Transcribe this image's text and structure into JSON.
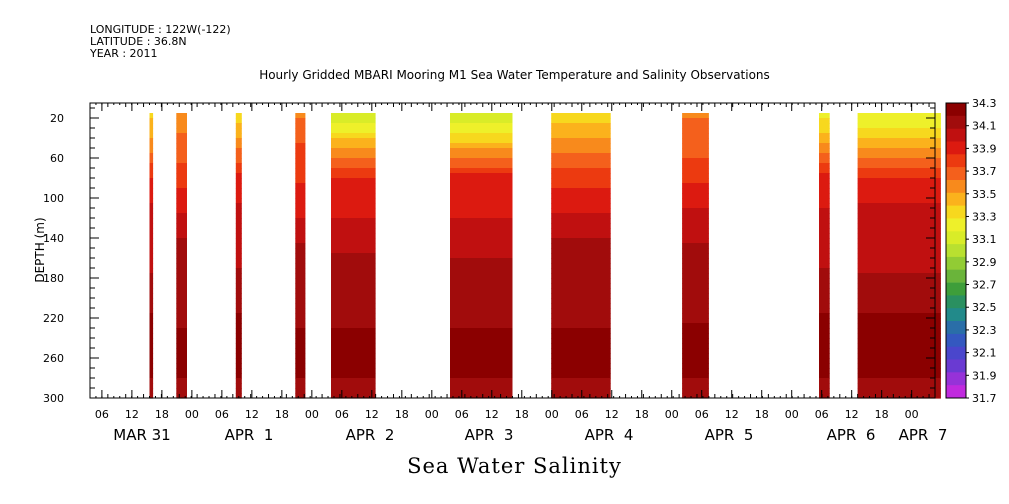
{
  "header": {
    "longitude": "LONGITUDE : 122W(-122)",
    "latitude": "LATITUDE : 36.8N",
    "year": "YEAR : 2011"
  },
  "chart_data": {
    "type": "heatmap",
    "title": "Hourly Gridded MBARI Mooring M1 Sea Water Temperature and Salinity Observations",
    "xlabel": "Sea Water Salinity",
    "ylabel": "DEPTH (m)",
    "ylim": [
      300,
      5
    ],
    "y_ticks": [
      20,
      60,
      100,
      140,
      180,
      220,
      260,
      300
    ],
    "x_range_hours": [
      0,
      142
    ],
    "x_hour_ticks": [
      "06",
      "12",
      "18",
      "00",
      "06",
      "12",
      "18",
      "00",
      "06",
      "12",
      "18",
      "00",
      "06",
      "12",
      "18",
      "00",
      "06",
      "12",
      "18",
      "00",
      "06",
      "12",
      "18",
      "00",
      "06",
      "12",
      "18",
      "00"
    ],
    "x_day_labels": [
      "MAR 31",
      "APR  1",
      "APR  2",
      "APR  3",
      "APR  4",
      "APR  5",
      "APR  6",
      "APR  7"
    ],
    "colorbar": {
      "levels": [
        "34.3",
        "34.1",
        "33.9",
        "33.7",
        "33.5",
        "33.3",
        "33.1",
        "32.9",
        "32.7",
        "32.5",
        "32.3",
        "32.1",
        "31.9",
        "31.7"
      ],
      "colors": [
        "#8b0000",
        "#a10c0c",
        "#c01010",
        "#dc1a10",
        "#ec3a10",
        "#f4601c",
        "#f88a1c",
        "#fbb21c",
        "#f7d81e",
        "#eef02a",
        "#d9ec28",
        "#b9e030",
        "#92cc34",
        "#6ab43a",
        "#3e9e3a",
        "#2a9060",
        "#228a8a",
        "#2a6ea8",
        "#3458c0",
        "#4a46cc",
        "#6a3ad2",
        "#9632d8",
        "#c02ade"
      ]
    },
    "segments": [
      {
        "start": 10.0,
        "end": 10.6,
        "top_salinity": 33.4
      },
      {
        "start": 14.5,
        "end": 16.3,
        "top_salinity": 33.5
      },
      {
        "start": 24.5,
        "end": 25.5,
        "top_salinity": 33.4
      },
      {
        "start": 34.5,
        "end": 36.2,
        "top_salinity": 33.6
      },
      {
        "start": 40.5,
        "end": 48.0,
        "top_salinity": 33.1
      },
      {
        "start": 60.5,
        "end": 71.0,
        "top_salinity": 33.1
      },
      {
        "start": 77.5,
        "end": 87.5,
        "top_salinity": 33.3
      },
      {
        "start": 99.5,
        "end": 104.0,
        "top_salinity": 33.6
      },
      {
        "start": 122.5,
        "end": 124.3,
        "top_salinity": 33.3
      },
      {
        "start": 129.0,
        "end": 143.0,
        "top_salinity": 33.2
      }
    ]
  }
}
